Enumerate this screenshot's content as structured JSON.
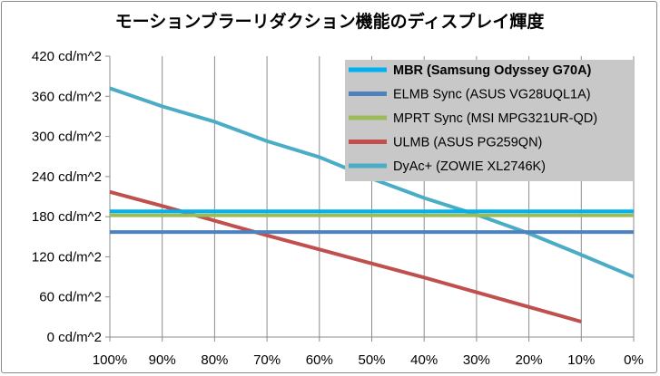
{
  "chart_data": {
    "type": "line",
    "title": "モーションブラーリダクション機能のディスプレイ輝度",
    "xlabel": "",
    "ylabel": "",
    "x": [
      100,
      90,
      80,
      70,
      60,
      50,
      40,
      30,
      20,
      10,
      0
    ],
    "x_tick_labels": [
      "100%",
      "90%",
      "80%",
      "70%",
      "60%",
      "50%",
      "40%",
      "30%",
      "20%",
      "10%",
      "0%"
    ],
    "x_reversed": true,
    "ylim": [
      0,
      420
    ],
    "y_ticks": [
      0,
      60,
      120,
      180,
      240,
      300,
      360,
      420
    ],
    "y_tick_labels": [
      "0 cd/m^2",
      "60 cd/m^2",
      "120 cd/m^2",
      "180 cd/m^2",
      "240 cd/m^2",
      "300 cd/m^2",
      "360 cd/m^2",
      "420 cd/m^2"
    ],
    "grid": "vertical",
    "legend_position": "top-right",
    "series": [
      {
        "name": "MBR (Samsung Odyssey G70A)",
        "color": "#00b0f0",
        "bold": true,
        "x": [
          100,
          0
        ],
        "values": [
          188,
          188
        ]
      },
      {
        "name": "ELMB Sync (ASUS VG28UQL1A)",
        "color": "#4f81bd",
        "bold": false,
        "x": [
          100,
          0
        ],
        "values": [
          157,
          157
        ]
      },
      {
        "name": "MPRT Sync (MSI MPG321UR-QD)",
        "color": "#9bbb59",
        "bold": false,
        "x": [
          100,
          0
        ],
        "values": [
          182,
          182
        ]
      },
      {
        "name": "ULMB (ASUS PG259QN)",
        "color": "#c0504d",
        "bold": false,
        "x": [
          100,
          90,
          80,
          70,
          60,
          50,
          40,
          30,
          20,
          10
        ],
        "values": [
          217,
          196,
          174,
          152,
          131,
          110,
          89,
          67,
          45,
          23
        ]
      },
      {
        "name": "DyAc+ (ZOWIE XL2746K)",
        "color": "#4bacc6",
        "bold": false,
        "x": [
          100,
          90,
          80,
          70,
          60,
          50,
          40,
          30,
          20,
          10,
          0
        ],
        "values": [
          372,
          345,
          322,
          293,
          269,
          237,
          208,
          183,
          155,
          123,
          90
        ]
      }
    ],
    "colors": {
      "grid": "#8c8c8c",
      "axis": "#8c8c8c",
      "legend_bg": "#c8c8c8"
    }
  }
}
